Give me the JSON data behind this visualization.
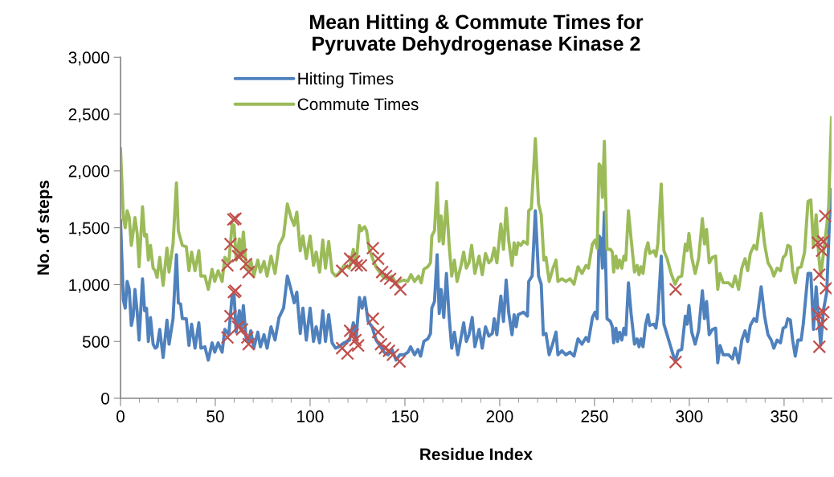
{
  "chart_data": {
    "type": "line",
    "title": "Mean Hitting & Commute Times for\nPyruvate Dehydrogenase Kinase 2",
    "xlabel": "Residue Index",
    "ylabel": "No. of steps",
    "xlim": [
      0,
      375
    ],
    "xticks": [
      0,
      50,
      100,
      150,
      200,
      250,
      300,
      350
    ],
    "ylim": [
      0,
      3000
    ],
    "yticks": [
      0,
      500,
      {
        "value": 1000,
        "label": "1,000"
      },
      {
        "value": 1500,
        "label": "1,500"
      },
      {
        "value": 2000,
        "label": "2,000"
      },
      {
        "value": 2500,
        "label": "2,500"
      },
      {
        "value": 3000,
        "label": "3,000"
      }
    ],
    "grid": false,
    "legend": "top left",
    "series": [
      {
        "name": "Hitting Times",
        "color": "#4f81bd",
        "x": [
          0,
          1.5,
          2.5,
          3.5,
          4.6,
          5.7,
          6.7,
          7.6,
          8.8,
          9.8,
          11.6,
          12.7,
          13.7,
          14.7,
          15.8,
          17.2,
          18.3,
          19.3,
          20.7,
          22.5,
          24.5,
          25.6,
          27.7,
          29.5,
          30.5,
          31.7,
          32.6,
          34.7,
          36.1,
          37.5,
          39.3,
          41.3,
          42.4,
          44.5,
          46.3,
          48.3,
          49.7,
          51.5,
          53.6,
          55.0,
          57.1,
          58.9,
          59.9,
          61.0,
          62.7,
          63.7,
          64.8,
          66.2,
          67.6,
          68.7,
          70.3,
          72.4,
          73.8,
          75.7,
          77.3,
          79.4,
          81.5,
          83.6,
          86.0,
          88.0,
          89.9,
          91.6,
          93.0,
          94.8,
          96.2,
          98.0,
          100.0,
          101.8,
          103.2,
          105.0,
          106.7,
          108.1,
          109.8,
          111.6,
          113.4,
          115.1,
          117.9,
          120.8,
          122.8,
          124.2,
          126.0,
          127.4,
          128.8,
          130.6,
          132.7,
          134.8,
          136.8,
          139.0,
          141.1,
          143.2,
          145.3,
          147.4,
          149.5,
          151.6,
          153.0,
          155.1,
          156.9,
          158.3,
          160.0,
          162.1,
          163.5,
          164.2,
          165.6,
          167.0,
          168.1,
          169.1,
          170.5,
          171.9,
          173.3,
          174.7,
          176.1,
          177.9,
          179.6,
          181.0,
          182.4,
          183.8,
          185.5,
          186.9,
          189.1,
          190.8,
          192.5,
          194.3,
          196.1,
          197.1,
          198.5,
          200.6,
          202.0,
          203.4,
          204.8,
          206.5,
          207.6,
          208.7,
          209.7,
          211.1,
          212.5,
          214.6,
          215.3,
          217.1,
          218.8,
          220.5,
          221.9,
          223.0,
          224.4,
          226.1,
          227.9,
          229.7,
          230.7,
          232.8,
          234.9,
          237.1,
          239.2,
          241.3,
          243.4,
          245.5,
          246.8,
          248.9,
          250.3,
          251.4,
          252.4,
          253.4,
          254.2,
          255.2,
          256.6,
          258.4,
          259.4,
          260.1,
          261.3,
          262.2,
          263.2,
          264.4,
          265.5,
          266.5,
          267.9,
          269.3,
          271.1,
          272.5,
          273.5,
          274.5,
          275.6,
          277.0,
          278.2,
          279.1,
          281.3,
          282.4,
          283.4,
          285.2,
          286.6,
          288.3,
          290.4,
          292.5,
          294.2,
          296.0,
          297.9,
          298.9,
          299.8,
          301.3,
          303.1,
          304.9,
          306.9,
          308.0,
          309.1,
          310.5,
          312.2,
          313.9,
          315.0,
          316.2,
          317.9,
          320.7,
          322.8,
          324.2,
          326.0,
          327.7,
          329.4,
          330.8,
          332.2,
          334.1,
          335.5,
          337.9,
          339.7,
          341.5,
          343.2,
          344.6,
          346.3,
          348.1,
          349.5,
          350.9,
          351.9,
          353.3,
          354.5,
          355.9,
          357.3,
          359.0,
          360.1,
          362.6,
          364.1,
          365.5,
          366.9,
          368.3,
          369.3,
          370.7,
          372.5,
          373.9,
          375.0
        ],
        "values": [
          1568,
          864,
          793,
          1028,
          958,
          641,
          723,
          958,
          758,
          512,
          1051,
          770,
          793,
          500,
          711,
          476,
          441,
          453,
          606,
          359,
          688,
          476,
          700,
          1263,
          840,
          828,
          700,
          700,
          465,
          652,
          441,
          664,
          441,
          453,
          336,
          488,
          406,
          488,
          406,
          606,
          559,
          911,
          911,
          582,
          770,
          594,
          817,
          535,
          500,
          594,
          441,
          582,
          453,
          559,
          441,
          629,
          512,
          711,
          793,
          1075,
          958,
          840,
          934,
          570,
          793,
          512,
          793,
          500,
          629,
          488,
          770,
          500,
          735,
          488,
          441,
          453,
          488,
          512,
          664,
          512,
          887,
          793,
          887,
          676,
          629,
          512,
          465,
          406,
          383,
          430,
          336,
          383,
          383,
          406,
          453,
          383,
          430,
          371,
          500,
          523,
          570,
          793,
          852,
          1263,
          746,
          958,
          711,
          1098,
          723,
          441,
          582,
          383,
          535,
          664,
          500,
          559,
          711,
          453,
          606,
          441,
          629,
          547,
          570,
          700,
          559,
          899,
          676,
          1040,
          746,
          559,
          735,
          629,
          735,
          746,
          758,
          723,
          1028,
          1075,
          1650,
          1075,
          1004,
          559,
          570,
          383,
          476,
          582,
          383,
          418,
          383,
          406,
          371,
          523,
          476,
          535,
          500,
          711,
          758,
          700,
          1427,
          1403,
          1145,
          1638,
          700,
          676,
          629,
          488,
          617,
          500,
          582,
          512,
          617,
          559,
          1016,
          746,
          476,
          523,
          453,
          523,
          453,
          652,
          735,
          641,
          652,
          617,
          746,
          1251,
          652,
          559,
          441,
          324,
          418,
          430,
          723,
          652,
          817,
          582,
          476,
          594,
          946,
          700,
          852,
          559,
          606,
          617,
          312,
          465,
          383,
          383,
          347,
          441,
          312,
          512,
          594,
          500,
          641,
          700,
          676,
          981,
          723,
          559,
          512,
          441,
          512,
          488,
          617,
          629,
          700,
          688,
          512,
          371,
          512,
          512,
          652,
          1098,
          1098,
          606,
          981,
          676,
          465,
          770,
          934,
          1544,
          1838
        ]
      },
      {
        "name": "Commute Times",
        "color": "#9bbb59",
        "x": [
          0,
          1.5,
          2.5,
          3.5,
          4.6,
          5.7,
          6.4,
          7.6,
          8.8,
          9.8,
          11.6,
          12.7,
          13.7,
          14.7,
          15.8,
          17.2,
          18.3,
          19.3,
          20.7,
          22.5,
          24.5,
          25.6,
          27.7,
          29.5,
          30.5,
          32.6,
          34.7,
          36.1,
          37.5,
          39.3,
          41.3,
          42.4,
          44.5,
          46.3,
          48.3,
          49.7,
          51.5,
          53.6,
          55.0,
          57.1,
          58.9,
          59.9,
          61.0,
          62.7,
          63.7,
          64.8,
          66.2,
          67.6,
          68.7,
          70.3,
          72.4,
          73.8,
          75.7,
          77.3,
          79.4,
          81.5,
          83.6,
          86.0,
          88.0,
          89.9,
          91.6,
          93.0,
          94.8,
          96.2,
          98.0,
          100.0,
          101.8,
          103.2,
          105.0,
          106.7,
          108.1,
          109.8,
          111.6,
          113.4,
          115.1,
          117.9,
          120.7,
          122.8,
          124.2,
          126.0,
          127.0,
          128.0,
          128.8,
          129.8,
          131.2,
          133.3,
          134.7,
          136.1,
          138.2,
          140.3,
          143.1,
          145.2,
          147.3,
          149.4,
          151.5,
          153.2,
          155.1,
          157.2,
          158.6,
          160.0,
          162.1,
          163.5,
          164.2,
          165.6,
          167.0,
          168.1,
          169.1,
          170.2,
          171.9,
          173.3,
          174.7,
          176.1,
          177.5,
          179.6,
          181.0,
          182.4,
          183.8,
          185.2,
          186.9,
          189.1,
          190.8,
          192.5,
          194.3,
          195.7,
          197.1,
          198.5,
          200.6,
          202.0,
          203.4,
          204.8,
          206.5,
          207.6,
          208.7,
          209.7,
          211.1,
          212.5,
          214.6,
          215.3,
          216.7,
          218.8,
          220.5,
          221.9,
          223.3,
          224.4,
          226.1,
          227.9,
          229.7,
          230.7,
          232.8,
          234.9,
          237.1,
          239.2,
          241.3,
          243.4,
          245.5,
          246.8,
          248.9,
          250.3,
          251.4,
          252.4,
          253.4,
          254.2,
          255.2,
          256.6,
          258.4,
          259.4,
          260.1,
          261.3,
          262.2,
          263.2,
          264.4,
          265.5,
          266.5,
          267.9,
          269.3,
          271.1,
          272.5,
          273.5,
          274.5,
          275.6,
          277.0,
          278.2,
          279.1,
          281.3,
          282.4,
          283.4,
          285.2,
          286.6,
          288.3,
          290.4,
          292.5,
          294.2,
          296.0,
          297.9,
          298.9,
          299.8,
          301.3,
          303.1,
          304.9,
          306.9,
          308.0,
          309.1,
          310.5,
          312.2,
          313.9,
          315.0,
          316.2,
          317.9,
          320.7,
          322.8,
          324.2,
          326.0,
          327.7,
          329.4,
          330.8,
          332.2,
          334.1,
          335.5,
          337.9,
          339.7,
          341.5,
          343.2,
          344.6,
          346.3,
          348.1,
          349.5,
          350.9,
          351.9,
          353.3,
          354.5,
          355.9,
          357.3,
          359.0,
          360.8,
          362.6,
          364.1,
          365.5,
          366.9,
          368.3,
          369.3,
          370.7,
          372.5,
          373.5,
          375.0
        ],
        "values": [
          2200,
          1590,
          1500,
          1650,
          1590,
          1345,
          1427,
          1590,
          1450,
          1157,
          1685,
          1427,
          1440,
          1216,
          1345,
          1145,
          1122,
          1063,
          1240,
          993,
          1322,
          1110,
          1357,
          1896,
          1473,
          1345,
          1333,
          1122,
          1286,
          1122,
          1298,
          1075,
          1075,
          958,
          1134,
          1028,
          1122,
          1028,
          1240,
          1192,
          1533,
          1521,
          1216,
          1403,
          1240,
          1462,
          1169,
          1134,
          1216,
          1075,
          1216,
          1110,
          1204,
          1075,
          1251,
          1098,
          1345,
          1427,
          1709,
          1591,
          1521,
          1638,
          1298,
          1427,
          1228,
          1427,
          1169,
          1286,
          1110,
          1392,
          1145,
          1380,
          1110,
          1075,
          1098,
          1169,
          1145,
          1310,
          1169,
          1521,
          1474,
          1497,
          1509,
          1474,
          1310,
          1216,
          1157,
          1122,
          1075,
          1051,
          1075,
          1016,
          1028,
          1040,
          1028,
          1087,
          1028,
          1075,
          1016,
          1134,
          1157,
          1192,
          1427,
          1474,
          1896,
          1380,
          1603,
          1357,
          1732,
          1357,
          1075,
          1216,
          1028,
          1169,
          1286,
          1145,
          1192,
          1345,
          1098,
          1251,
          1087,
          1274,
          1192,
          1216,
          1322,
          1192,
          1533,
          1310,
          1673,
          1380,
          1169,
          1368,
          1263,
          1368,
          1345,
          1380,
          1357,
          1650,
          1673,
          2284,
          1709,
          1615,
          1216,
          1240,
          1028,
          1134,
          1216,
          1028,
          1051,
          1028,
          1051,
          1004,
          1157,
          1098,
          1169,
          1145,
          1357,
          1392,
          1321,
          2061,
          2037,
          1767,
          2260,
          1310,
          1310,
          1286,
          1110,
          1251,
          1145,
          1216,
          1145,
          1251,
          1216,
          1650,
          1403,
          1110,
          1169,
          1087,
          1157,
          1098,
          1298,
          1368,
          1274,
          1298,
          1251,
          1357,
          1885,
          1298,
          1228,
          1098,
          1004,
          1063,
          1075,
          1357,
          1298,
          1450,
          1239,
          1098,
          1228,
          1580,
          1357,
          1486,
          1192,
          1239,
          1251,
          958,
          1098,
          1016,
          1016,
          981,
          1075,
          958,
          1145,
          1228,
          1122,
          1274,
          1345,
          1310,
          1626,
          1357,
          1192,
          1145,
          1075,
          1145,
          1122,
          1239,
          1263,
          1345,
          1333,
          1122,
          1016,
          1145,
          1157,
          1286,
          1732,
          1744,
          1333,
          1615,
          1251,
          1075,
          1263,
          1521,
          1685,
          2471
        ]
      },
      {
        "type": "scatter",
        "marker": "cross",
        "color": "#c0504d",
        "x": [
          56.4,
          58.0,
          59.5,
          60.6,
          62.0,
          63.7,
          66.2,
          67.6,
          116.9,
          121.1,
          123.2,
          124.6,
          126.8,
          133.1,
          135.9,
          138.0,
          140.1,
          142.2,
          145.1,
          147.6,
          292.8,
          367.8,
          368.6,
          370.0,
          370.7,
          371.7,
          372.1,
          56.4,
          58.0,
          59.8,
          60.6,
          62.0,
          64.1,
          66.9,
          67.6,
          116.9,
          119.7,
          121.1,
          122.5,
          123.9,
          125.3,
          133.1,
          135.9,
          137.4,
          139.5,
          141.6,
          143.7,
          147.2,
          292.8,
          367.8,
          368.6,
          369.7,
          370.7
        ],
        "values": [
          1169,
          1357,
          1573,
          1580,
          1251,
          1263,
          1181,
          1110,
          1122,
          1228,
          1204,
          1169,
          1169,
          1321,
          1228,
          1110,
          1075,
          1051,
          1016,
          958,
          958,
          1368,
          1087,
          1298,
          1380,
          1603,
          969,
          535,
          723,
          934,
          946,
          629,
          606,
          535,
          476,
          441,
          394,
          594,
          559,
          512,
          465,
          700,
          582,
          476,
          441,
          418,
          383,
          324,
          319,
          735,
          453,
          652,
          758
        ]
      }
    ]
  }
}
